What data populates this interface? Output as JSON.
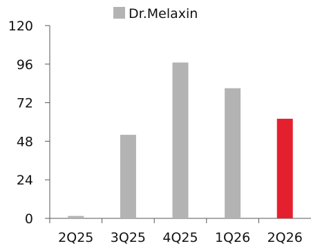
{
  "chart_data": {
    "type": "bar",
    "title": "",
    "xlabel": "",
    "ylabel": "",
    "categories": [
      "2Q25",
      "3Q25",
      "4Q25",
      "1Q26",
      "2Q26"
    ],
    "series": [
      {
        "name": "Dr.Melaxin",
        "values": [
          1.5,
          52,
          97,
          81,
          62
        ]
      }
    ],
    "highlight_index": 4,
    "ylim": [
      0,
      120
    ],
    "yticks": [
      "0",
      "24",
      "48",
      "72",
      "96",
      "120"
    ],
    "grid": false,
    "legend_position": "top-center",
    "colors": {
      "bar": "#b3b3b3",
      "highlight": "#e5202e",
      "axis": "#555555",
      "text": "#111111"
    }
  }
}
